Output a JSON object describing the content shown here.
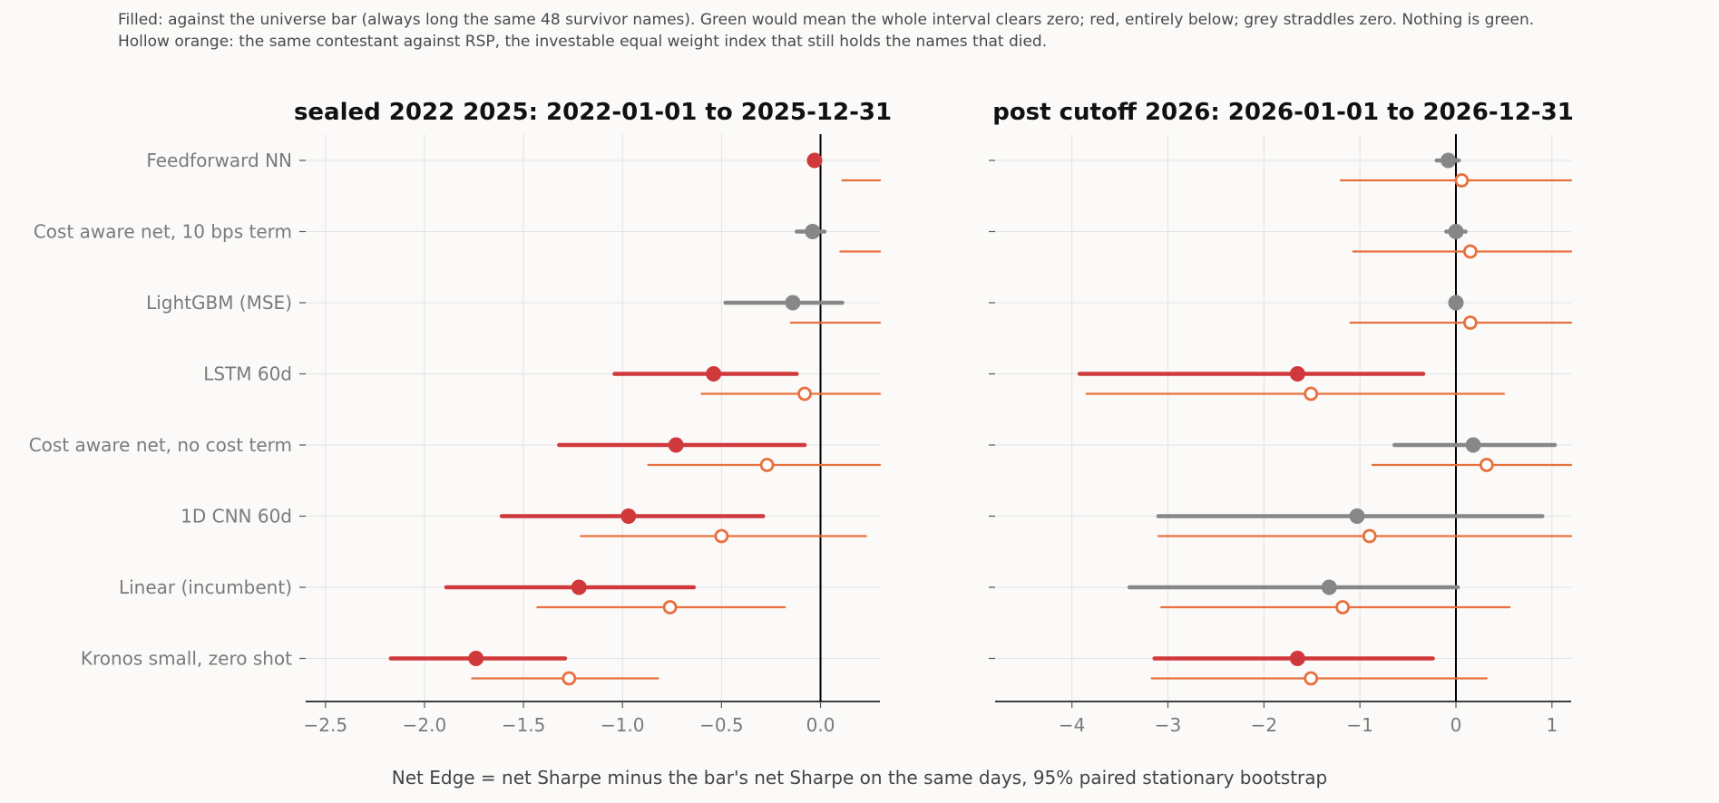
{
  "captions": {
    "line1": "Filled: against the universe bar (always long the same 48 survivor names). Green would mean the whole interval clears zero; red, entirely below; grey straddles zero. Nothing is green.",
    "line2": "Hollow orange: the same contestant against RSP, the investable equal weight index that still holds the names that died."
  },
  "colors": {
    "below": "#d0393c",
    "straddle": "#878787",
    "rsp": "#e8703e",
    "grid": "#e3e3e3",
    "zero_line": "#000000"
  },
  "chart_data": {
    "type": "forest",
    "xlabel": "Net Edge = net Sharpe minus the bar's net Sharpe on the same days, 95% paired stationary bootstrap",
    "categories": [
      "Feedforward NN",
      "Cost aware net, 10 bps term",
      "LightGBM (MSE)",
      "LSTM 60d",
      "Cost aware net, no cost term",
      "1D CNN 60d",
      "Linear (incumbent)",
      "Kronos small, zero shot"
    ],
    "panels": [
      {
        "title": "sealed 2022 2025: 2022-01-01 to 2025-12-31",
        "xlim": [
          -2.6,
          0.3
        ],
        "xticks": [
          -2.5,
          -2.0,
          -1.5,
          -1.0,
          -0.5,
          0.0
        ],
        "xtick_labels": [
          "−2.5",
          "−2.0",
          "−1.5",
          "−1.0",
          "−0.5",
          "0.0"
        ],
        "series": [
          {
            "name": "against the universe bar",
            "style": "filled",
            "points": [
              {
                "est": -0.03,
                "lo": -0.03,
                "hi": -0.03,
                "color": "below"
              },
              {
                "est": -0.04,
                "lo": -0.12,
                "hi": 0.02,
                "color": "straddle"
              },
              {
                "est": -0.14,
                "lo": -0.48,
                "hi": 0.11,
                "color": "straddle"
              },
              {
                "est": -0.54,
                "lo": -1.04,
                "hi": -0.12,
                "color": "below"
              },
              {
                "est": -0.73,
                "lo": -1.32,
                "hi": -0.08,
                "color": "below"
              },
              {
                "est": -0.97,
                "lo": -1.61,
                "hi": -0.29,
                "color": "below"
              },
              {
                "est": -1.22,
                "lo": -1.89,
                "hi": -0.64,
                "color": "below"
              },
              {
                "est": -1.74,
                "lo": -2.17,
                "hi": -1.29,
                "color": "below"
              }
            ]
          },
          {
            "name": "against RSP",
            "style": "hollow",
            "points": [
              {
                "est": null,
                "lo": 0.11,
                "hi": 0.35
              },
              {
                "est": null,
                "lo": 0.1,
                "hi": 0.35
              },
              {
                "est": null,
                "lo": -0.15,
                "hi": 0.35
              },
              {
                "est": -0.08,
                "lo": -0.6,
                "hi": 0.35
              },
              {
                "est": -0.27,
                "lo": -0.87,
                "hi": 0.35
              },
              {
                "est": -0.5,
                "lo": -1.21,
                "hi": 0.23
              },
              {
                "est": -0.76,
                "lo": -1.43,
                "hi": -0.18
              },
              {
                "est": -1.27,
                "lo": -1.76,
                "hi": -0.82
              }
            ]
          }
        ]
      },
      {
        "title": "post cutoff 2026: 2026-01-01 to 2026-12-31",
        "xlim": [
          -4.8,
          1.2
        ],
        "xticks": [
          -4,
          -3,
          -2,
          -1,
          0,
          1
        ],
        "xtick_labels": [
          "−4",
          "−3",
          "−2",
          "−1",
          "0",
          "1"
        ],
        "series": [
          {
            "name": "against the universe bar",
            "style": "filled",
            "points": [
              {
                "est": -0.08,
                "lo": -0.2,
                "hi": 0.03,
                "color": "straddle"
              },
              {
                "est": 0.0,
                "lo": -0.1,
                "hi": 0.1,
                "color": "straddle"
              },
              {
                "est": 0.0,
                "lo": 0.0,
                "hi": 0.0,
                "color": "straddle"
              },
              {
                "est": -1.65,
                "lo": -3.92,
                "hi": -0.34,
                "color": "below"
              },
              {
                "est": 0.18,
                "lo": -0.64,
                "hi": 1.03,
                "color": "straddle"
              },
              {
                "est": -1.03,
                "lo": -3.1,
                "hi": 0.9,
                "color": "straddle"
              },
              {
                "est": -1.32,
                "lo": -3.4,
                "hi": 0.02,
                "color": "straddle"
              },
              {
                "est": -1.65,
                "lo": -3.14,
                "hi": -0.24,
                "color": "below"
              }
            ]
          },
          {
            "name": "against RSP",
            "style": "hollow",
            "points": [
              {
                "est": 0.06,
                "lo": -1.2,
                "hi": 1.2
              },
              {
                "est": 0.15,
                "lo": -1.07,
                "hi": 1.2
              },
              {
                "est": 0.15,
                "lo": -1.1,
                "hi": 1.2
              },
              {
                "est": -1.51,
                "lo": -3.85,
                "hi": 0.5
              },
              {
                "est": 0.32,
                "lo": -0.87,
                "hi": 1.2
              },
              {
                "est": -0.9,
                "lo": -3.1,
                "hi": 1.2
              },
              {
                "est": -1.18,
                "lo": -3.07,
                "hi": 0.56
              },
              {
                "est": -1.51,
                "lo": -3.17,
                "hi": 0.32
              }
            ]
          }
        ]
      }
    ]
  }
}
